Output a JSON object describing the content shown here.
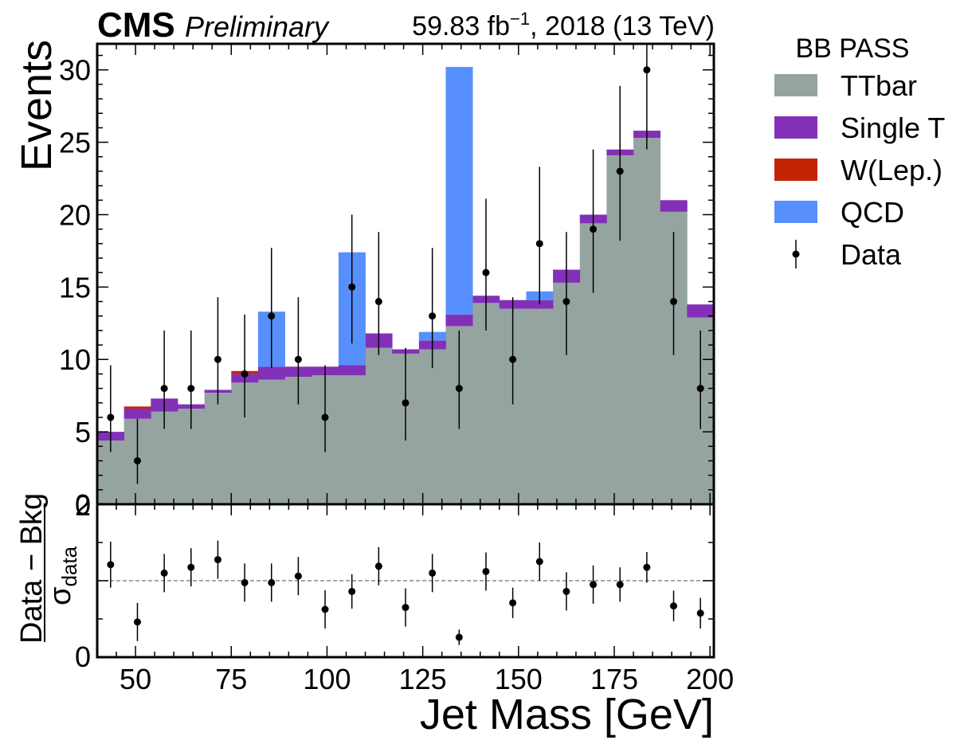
{
  "header": {
    "experiment": "CMS",
    "status": "Preliminary",
    "lumi_prefix": "59.83 fb",
    "lumi_exponent": "−1",
    "lumi_suffix": ", 2018 (13 TeV)"
  },
  "colors": {
    "TTbar": "#96a4a1",
    "Single T": "#8330b8",
    "W(Lep.)": "#c22405",
    "QCD": "#5790fc",
    "Data": "#000000"
  },
  "chart_data": [
    {
      "type": "bar",
      "stacked": true,
      "xlabel": "Jet Mass [GeV]",
      "ylabel": "Events",
      "xlim": [
        40,
        201
      ],
      "ylim": [
        0,
        31.8
      ],
      "yticks": [
        0,
        5,
        10,
        15,
        20,
        25,
        30
      ],
      "xticks": [
        50,
        75,
        100,
        125,
        150,
        175,
        200
      ],
      "bin_edges": [
        40,
        47,
        54,
        61,
        68,
        75,
        82,
        89,
        96,
        103,
        110,
        117,
        124,
        131,
        138,
        145,
        152,
        159,
        166,
        173,
        180,
        187,
        194,
        201
      ],
      "legend": {
        "title": "BB PASS",
        "placement": "outside right"
      },
      "series": [
        {
          "name": "TTbar",
          "values": [
            4.4,
            5.9,
            6.4,
            6.6,
            7.7,
            8.4,
            8.6,
            8.8,
            8.9,
            8.9,
            10.8,
            10.4,
            10.7,
            12.3,
            13.9,
            13.5,
            13.5,
            15.3,
            19.4,
            24.1,
            25.3,
            20.2,
            12.9
          ]
        },
        {
          "name": "Single T",
          "values": [
            0.6,
            0.7,
            0.9,
            0.3,
            0.2,
            0.6,
            0.9,
            0.7,
            0.6,
            0.7,
            1.0,
            0.3,
            0.6,
            0.8,
            0.5,
            0.6,
            0.6,
            0.9,
            0.6,
            0.4,
            0.5,
            0.8,
            0.9
          ]
        },
        {
          "name": "W(Lep.)",
          "values": [
            0,
            0.15,
            0,
            0,
            0,
            0.2,
            0,
            0,
            0,
            0,
            0,
            0,
            0,
            0,
            0,
            0,
            0,
            0,
            0,
            0,
            0,
            0,
            0
          ]
        },
        {
          "name": "QCD",
          "values": [
            0,
            0,
            0,
            0,
            0,
            0,
            3.8,
            0,
            0,
            7.8,
            0,
            0,
            0.6,
            17.1,
            0,
            0,
            0.6,
            0,
            0,
            0,
            0,
            0,
            0
          ]
        }
      ],
      "data": {
        "name": "Data",
        "x": [
          43.5,
          50.5,
          57.5,
          64.5,
          71.5,
          78.5,
          85.5,
          92.5,
          99.5,
          106.5,
          113.5,
          120.5,
          127.5,
          134.5,
          141.5,
          148.5,
          155.5,
          162.5,
          169.5,
          176.5,
          183.5,
          190.5,
          197.5
        ],
        "y": [
          6,
          3,
          8,
          8,
          10,
          9,
          13,
          10,
          6,
          15,
          14,
          7,
          13,
          8,
          16,
          10,
          18,
          14,
          19,
          23,
          30,
          14,
          8
        ],
        "err_low": [
          2.4,
          1.6,
          2.8,
          2.8,
          3.1,
          3.0,
          3.6,
          3.1,
          2.4,
          3.9,
          3.7,
          2.6,
          3.6,
          2.8,
          4.0,
          3.1,
          4.2,
          3.7,
          4.4,
          4.8,
          5.5,
          3.7,
          2.8
        ],
        "err_high": [
          3.6,
          2.9,
          4.0,
          4.0,
          4.3,
          4.1,
          4.7,
          4.3,
          3.6,
          5.0,
          4.8,
          3.8,
          4.7,
          4.0,
          5.1,
          4.3,
          5.3,
          4.8,
          5.5,
          5.9,
          6.5,
          4.8,
          4.0
        ]
      }
    },
    {
      "type": "scatter",
      "xlabel": "",
      "ylabel": "Data − Bkg",
      "ylabel_denominator_base": "σ",
      "ylabel_denominator_sub": "data",
      "xlim": [
        40,
        201
      ],
      "ylim": [
        -2,
        2
      ],
      "ytick_labels": [
        "0",
        "2"
      ],
      "reference_line": 0,
      "x": [
        43.5,
        50.5,
        57.5,
        64.5,
        71.5,
        78.5,
        85.5,
        92.5,
        99.5,
        106.5,
        113.5,
        120.5,
        127.5,
        134.5,
        141.5,
        148.5,
        155.5,
        162.5,
        169.5,
        176.5,
        183.5,
        190.5,
        197.5
      ],
      "y": [
        0.42,
        -1.08,
        0.2,
        0.35,
        0.55,
        -0.05,
        -0.05,
        0.12,
        -0.75,
        -0.28,
        0.38,
        -0.7,
        0.2,
        -1.48,
        0.24,
        -0.58,
        0.5,
        -0.28,
        -0.1,
        -0.1,
        0.35,
        -0.66,
        -0.85
      ],
      "err": [
        0.6,
        0.5,
        0.5,
        0.5,
        0.5,
        0.5,
        0.5,
        0.5,
        0.5,
        0.45,
        0.5,
        0.5,
        0.5,
        0.2,
        0.5,
        0.4,
        0.5,
        0.5,
        0.5,
        0.45,
        0.4,
        0.4,
        0.4
      ]
    }
  ]
}
